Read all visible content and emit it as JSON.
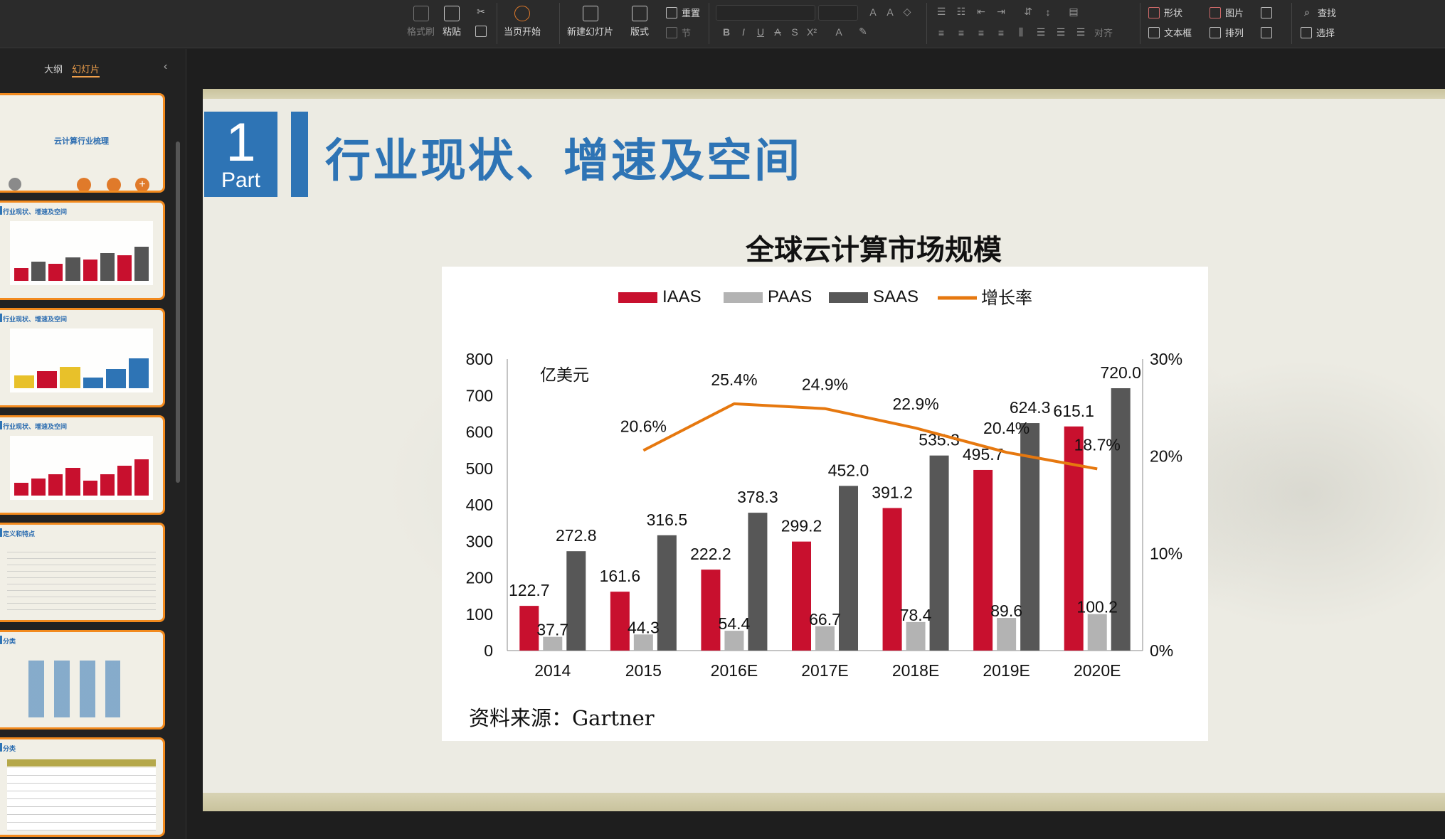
{
  "ribbon": {
    "format_painter": "格式刷",
    "paste": "粘贴",
    "from_current": "当页开始",
    "new_slide": "新建幻灯片",
    "layout": "版式",
    "reset": "重置",
    "section": "节",
    "align": "对齐",
    "shape": "形状",
    "picture": "图片",
    "textbox": "文本框",
    "arrange": "排列",
    "find": "查找",
    "select": "选择"
  },
  "panel": {
    "tab_outline": "大纲",
    "tab_slides": "幻灯片",
    "thumbs": [
      {
        "title": "云计算行业梳理"
      },
      {
        "title": "行业现状、增速及空间"
      },
      {
        "title": "行业现状、增速及空间"
      },
      {
        "title": "行业现状、增速及空间"
      },
      {
        "title": "定义和特点"
      },
      {
        "title": "分类"
      },
      {
        "title": "分类"
      }
    ]
  },
  "slide": {
    "part_number": "1",
    "part_word": "Part",
    "title": "行业现状、增速及空间",
    "chart_title": "全球云计算市场规模",
    "source": "资料来源：Gartner"
  },
  "chart_data": {
    "type": "bar",
    "title": "全球云计算市场规模",
    "unit_label": "亿美元",
    "categories": [
      "2014",
      "2015",
      "2016E",
      "2017E",
      "2018E",
      "2019E",
      "2020E"
    ],
    "series": [
      {
        "name": "IAAS",
        "color": "#c8102e",
        "values": [
          122.7,
          161.6,
          222.2,
          299.2,
          391.2,
          495.7,
          615.1
        ]
      },
      {
        "name": "PAAS",
        "color": "#b3b3b3",
        "values": [
          37.7,
          44.3,
          54.4,
          66.7,
          78.4,
          89.6,
          100.2
        ]
      },
      {
        "name": "SAAS",
        "color": "#575757",
        "values": [
          272.8,
          316.5,
          378.3,
          452.0,
          535.3,
          624.3,
          720.0
        ]
      }
    ],
    "line_series": {
      "name": "增长率",
      "color": "#e6780f",
      "categories": [
        "2015",
        "2016E",
        "2017E",
        "2018E",
        "2019E",
        "2020E"
      ],
      "values": [
        20.6,
        25.4,
        24.9,
        22.9,
        20.4,
        18.7
      ]
    },
    "ylim": [
      0,
      800
    ],
    "yticks": [
      0,
      100,
      200,
      300,
      400,
      500,
      600,
      700,
      800
    ],
    "y2lim": [
      0,
      30
    ],
    "y2ticks": [
      "0%",
      "10%",
      "20%",
      "30%"
    ],
    "legend": "top",
    "grid": false
  }
}
